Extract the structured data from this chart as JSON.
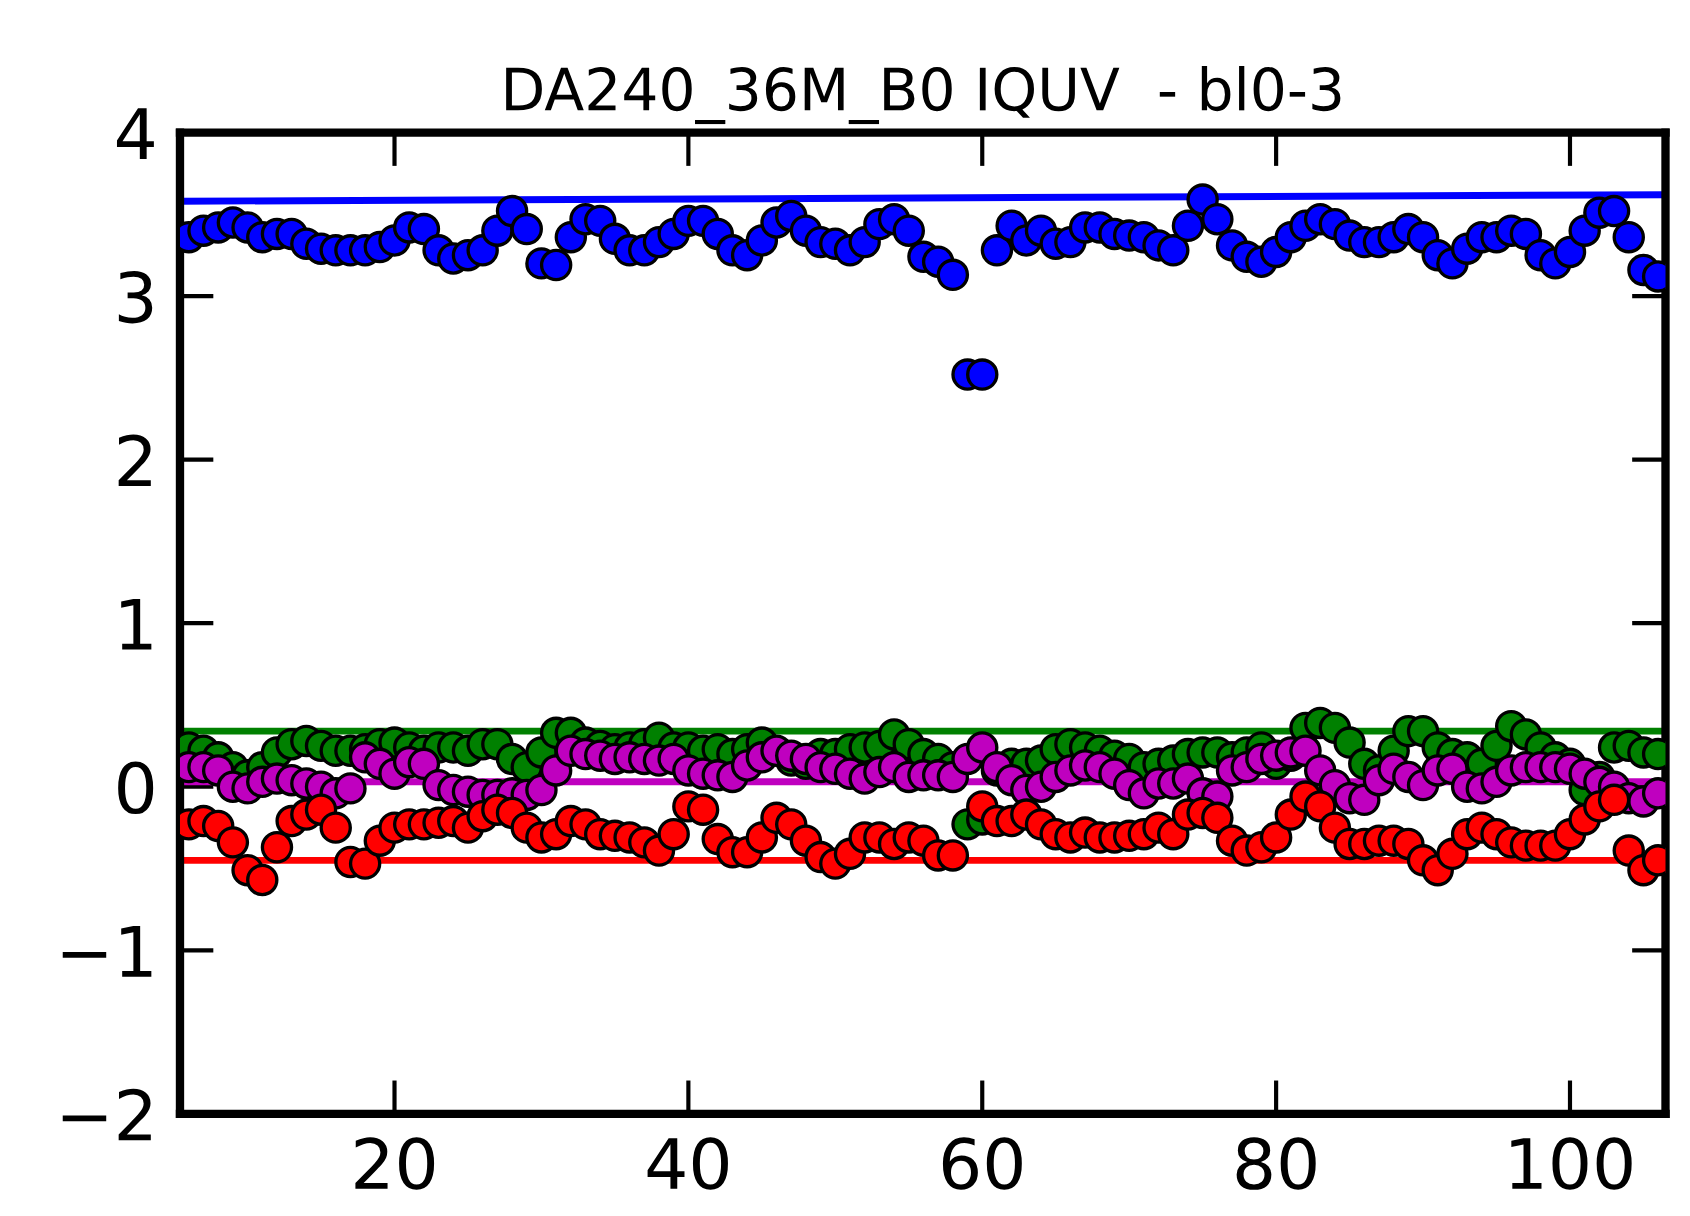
{
  "chart_data": {
    "type": "scatter",
    "title": "DA240_36M_B0 IQUV  - bl0-3",
    "x": [
      6,
      7,
      8,
      9,
      10,
      11,
      12,
      13,
      14,
      15,
      16,
      17,
      18,
      19,
      20,
      21,
      22,
      23,
      24,
      25,
      26,
      27,
      28,
      29,
      30,
      31,
      32,
      33,
      34,
      35,
      36,
      37,
      38,
      39,
      40,
      41,
      42,
      43,
      44,
      45,
      46,
      47,
      48,
      49,
      50,
      51,
      52,
      53,
      54,
      55,
      56,
      57,
      58,
      59,
      60,
      61,
      62,
      63,
      64,
      65,
      66,
      67,
      68,
      69,
      70,
      71,
      72,
      73,
      74,
      75,
      76,
      77,
      78,
      79,
      80,
      81,
      82,
      83,
      84,
      85,
      86,
      87,
      88,
      89,
      90,
      91,
      92,
      93,
      94,
      95,
      96,
      97,
      98,
      99,
      100,
      101,
      102,
      103,
      104,
      105,
      106
    ],
    "xlim": [
      5.4,
      106.5
    ],
    "xticks": [
      20,
      40,
      60,
      80,
      100
    ],
    "ylim": [
      -2,
      4
    ],
    "yticks": [
      {
        "value": -2,
        "label": "−2"
      },
      {
        "value": -1,
        "label": "−1"
      },
      0,
      1,
      2,
      3,
      4
    ],
    "marker": "circle",
    "grid": false,
    "legend": false,
    "series": [
      {
        "color": "#0000ff",
        "values": [
          3.36,
          3.4,
          3.42,
          3.45,
          3.42,
          3.36,
          3.38,
          3.38,
          3.32,
          3.29,
          3.28,
          3.28,
          3.28,
          3.3,
          3.34,
          3.42,
          3.41,
          3.28,
          3.23,
          3.25,
          3.28,
          3.4,
          3.52,
          3.41,
          3.2,
          3.19,
          3.36,
          3.47,
          3.46,
          3.35,
          3.28,
          3.28,
          3.33,
          3.38,
          3.46,
          3.46,
          3.38,
          3.28,
          3.25,
          3.34,
          3.45,
          3.49,
          3.4,
          3.33,
          3.32,
          3.28,
          3.33,
          3.44,
          3.47,
          3.4,
          3.24,
          3.21,
          3.13,
          2.52,
          2.52,
          3.28,
          3.43,
          3.34,
          3.4,
          3.32,
          3.33,
          3.42,
          3.42,
          3.38,
          3.37,
          3.36,
          3.31,
          3.28,
          3.43,
          3.59,
          3.47,
          3.31,
          3.24,
          3.21,
          3.27,
          3.36,
          3.43,
          3.47,
          3.44,
          3.37,
          3.33,
          3.33,
          3.36,
          3.41,
          3.36,
          3.25,
          3.2,
          3.29,
          3.36,
          3.36,
          3.4,
          3.38,
          3.25,
          3.2,
          3.27,
          3.4,
          3.51,
          3.52,
          3.36,
          3.16,
          3.12
        ]
      },
      {
        "color": "#008000",
        "values": [
          0.24,
          0.22,
          0.18,
          0.12,
          0.07,
          0.12,
          0.21,
          0.26,
          0.28,
          0.25,
          0.22,
          0.22,
          0.23,
          0.26,
          0.27,
          0.24,
          0.22,
          0.24,
          0.24,
          0.22,
          0.26,
          0.26,
          0.17,
          0.12,
          0.21,
          0.33,
          0.33,
          0.27,
          0.25,
          0.23,
          0.24,
          0.26,
          0.3,
          0.24,
          0.24,
          0.22,
          0.23,
          0.2,
          0.23,
          0.27,
          null,
          0.16,
          0.14,
          0.2,
          0.2,
          0.23,
          0.24,
          0.25,
          0.32,
          0.26,
          0.2,
          0.17,
          0.12,
          -0.23,
          -0.2,
          0.1,
          0.14,
          0.14,
          0.16,
          0.23,
          0.26,
          0.24,
          0.22,
          0.19,
          0.17,
          0.12,
          0.14,
          0.16,
          0.2,
          0.21,
          0.21,
          0.18,
          0.21,
          0.24,
          0.14,
          0.19,
          0.36,
          0.39,
          0.36,
          0.27,
          0.14,
          0.1,
          0.22,
          0.34,
          0.34,
          0.24,
          0.2,
          0.18,
          0.14,
          0.25,
          0.37,
          0.32,
          0.24,
          0.18,
          0.14,
          -0.02,
          0.06,
          0.24,
          0.25,
          0.21,
          0.2
        ]
      },
      {
        "color": "#bf00bf",
        "values": [
          0.12,
          0.12,
          0.1,
          0.0,
          -0.01,
          0.03,
          0.05,
          0.04,
          0.02,
          0.0,
          -0.04,
          -0.01,
          0.18,
          0.14,
          0.08,
          0.15,
          0.14,
          0.01,
          -0.02,
          -0.03,
          -0.05,
          -0.05,
          -0.04,
          -0.05,
          -0.02,
          0.1,
          0.22,
          0.2,
          0.19,
          0.17,
          0.18,
          0.17,
          0.16,
          0.17,
          0.1,
          0.08,
          0.07,
          0.06,
          0.13,
          0.18,
          0.22,
          0.19,
          0.17,
          0.12,
          0.11,
          0.08,
          0.05,
          0.09,
          0.12,
          0.06,
          0.07,
          0.07,
          0.06,
          0.17,
          0.24,
          0.12,
          0.04,
          -0.02,
          0.0,
          0.06,
          0.1,
          0.13,
          0.12,
          0.08,
          0.01,
          -0.04,
          0.02,
          0.02,
          0.05,
          -0.04,
          -0.06,
          0.1,
          0.12,
          0.17,
          0.19,
          0.21,
          0.22,
          0.1,
          0.01,
          -0.07,
          -0.08,
          0.04,
          0.11,
          0.06,
          0.01,
          0.1,
          0.11,
          0.0,
          -0.01,
          0.03,
          0.1,
          0.12,
          0.12,
          0.12,
          0.11,
          0.08,
          0.03,
          0.0,
          -0.07,
          -0.09,
          -0.04
        ]
      },
      {
        "color": "#ff0000",
        "values": [
          -0.23,
          -0.21,
          -0.24,
          -0.34,
          -0.51,
          -0.57,
          -0.37,
          -0.21,
          -0.17,
          -0.14,
          -0.25,
          -0.46,
          -0.47,
          -0.33,
          -0.25,
          -0.23,
          -0.23,
          -0.22,
          -0.21,
          -0.25,
          -0.18,
          -0.14,
          -0.16,
          -0.25,
          -0.31,
          -0.29,
          -0.21,
          -0.23,
          -0.29,
          -0.3,
          -0.31,
          -0.34,
          -0.39,
          -0.29,
          -0.12,
          -0.14,
          -0.32,
          -0.4,
          -0.4,
          -0.31,
          -0.19,
          -0.23,
          -0.33,
          -0.43,
          -0.47,
          -0.41,
          -0.31,
          -0.31,
          -0.35,
          -0.31,
          -0.33,
          -0.42,
          -0.42,
          null,
          -0.12,
          -0.21,
          -0.21,
          -0.17,
          -0.23,
          -0.29,
          -0.31,
          -0.28,
          -0.31,
          -0.31,
          -0.3,
          -0.29,
          -0.25,
          -0.29,
          -0.17,
          -0.16,
          -0.19,
          -0.33,
          -0.39,
          -0.37,
          -0.31,
          -0.17,
          -0.06,
          -0.12,
          -0.25,
          -0.35,
          -0.35,
          -0.33,
          -0.33,
          -0.35,
          -0.45,
          -0.51,
          -0.41,
          -0.29,
          -0.25,
          -0.29,
          -0.34,
          -0.36,
          -0.36,
          -0.36,
          -0.29,
          -0.2,
          -0.12,
          -0.08,
          -0.39,
          -0.51,
          -0.45
        ]
      },
      {
        "type": "line",
        "marker": "none",
        "color": "#0000ff",
        "x": [
          5.4,
          106.5
        ],
        "values": [
          3.58,
          3.62
        ]
      }
    ],
    "ref_lines": [
      {
        "axis": "y",
        "value": 0.34,
        "color": "#008000"
      },
      {
        "axis": "y",
        "value": 0.03,
        "color": "#bf00bf"
      },
      {
        "axis": "y",
        "value": -0.45,
        "color": "#ff0000"
      }
    ]
  }
}
